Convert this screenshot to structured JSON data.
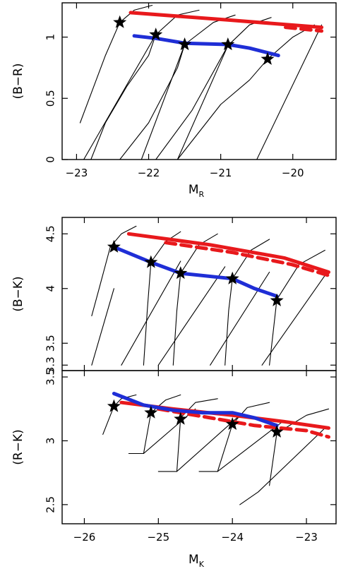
{
  "chart_data": [
    {
      "type": "line",
      "xlabel": "M",
      "xlabel_sub": "R",
      "ylabel": "(B−R)",
      "xlim": [
        -23.2,
        -19.4
      ],
      "ylim": [
        0,
        1.28
      ],
      "x_ticks": [
        -23,
        -22,
        -21,
        -20
      ],
      "x_tick_labels": [
        "−23",
        "−22",
        "−21",
        "−20"
      ],
      "y_ticks": [
        0,
        0.5,
        1
      ],
      "y_tick_labels": [
        "0",
        "0.5",
        "1"
      ],
      "series": [
        {
          "role": "model-thick",
          "color": "#e8191c",
          "dash": false,
          "x": [
            -22.25,
            -20.9,
            -19.6
          ],
          "y": [
            1.2,
            1.14,
            1.08
          ]
        },
        {
          "role": "model-thick",
          "color": "#e8191c",
          "dash": true,
          "x": [
            -20.1,
            -19.6
          ],
          "y": [
            1.08,
            1.05
          ]
        },
        {
          "role": "model-thick",
          "color": "#1f2ed6",
          "dash": false,
          "x": [
            -22.2,
            -21.9,
            -21.5,
            -20.9,
            -20.6,
            -20.2
          ],
          "y": [
            1.01,
            0.99,
            0.95,
            0.94,
            0.91,
            0.85
          ]
        },
        {
          "role": "track",
          "color": "#000000",
          "x": [
            -22.95,
            -22.6,
            -22.4,
            -22.2,
            -21.95
          ],
          "y": [
            0.3,
            0.85,
            1.12,
            1.22,
            1.26
          ]
        },
        {
          "role": "track",
          "color": "#000000",
          "x": [
            -22.8,
            -22.6,
            -22.3,
            -22.0,
            -21.9,
            -21.6,
            -21.3
          ],
          "y": [
            0.0,
            0.3,
            0.6,
            0.85,
            1.02,
            1.18,
            1.22
          ]
        },
        {
          "role": "track",
          "color": "#000000",
          "x": [
            -22.4,
            -22.0,
            -21.6,
            -21.5,
            -21.1,
            -20.8
          ],
          "y": [
            0.0,
            0.3,
            0.75,
            0.94,
            1.12,
            1.18
          ]
        },
        {
          "role": "track",
          "color": "#000000",
          "x": [
            -21.9,
            -21.4,
            -20.9,
            -20.6,
            -20.3
          ],
          "y": [
            0.0,
            0.4,
            0.93,
            1.1,
            1.16
          ]
        },
        {
          "role": "track",
          "color": "#000000",
          "x": [
            -21.6,
            -21.0,
            -20.6,
            -20.35,
            -20.0,
            -19.7
          ],
          "y": [
            0.0,
            0.45,
            0.65,
            0.82,
            1.0,
            1.1
          ]
        },
        {
          "role": "track",
          "color": "#000000",
          "x": [
            -22.9,
            -21.9
          ],
          "y": [
            0.0,
            1.02
          ]
        },
        {
          "role": "track",
          "color": "#000000",
          "x": [
            -22.1,
            -21.5
          ],
          "y": [
            0.0,
            0.94
          ]
        },
        {
          "role": "track",
          "color": "#000000",
          "x": [
            -21.6,
            -20.9
          ],
          "y": [
            0.0,
            0.93
          ]
        },
        {
          "role": "track",
          "color": "#000000",
          "x": [
            -20.5,
            -19.6
          ],
          "y": [
            0.0,
            1.1
          ]
        }
      ],
      "points": {
        "marker": "star",
        "x": [
          -22.4,
          -21.9,
          -21.5,
          -20.9,
          -20.35
        ],
        "y": [
          1.12,
          1.02,
          0.94,
          0.94,
          0.82
        ]
      }
    },
    {
      "type": "line",
      "xlabel": "",
      "ylabel": "(B−K)",
      "xlim": [
        -26.3,
        -22.6
      ],
      "ylim": [
        3.25,
        4.65
      ],
      "x_ticks": [
        -26,
        -25,
        -24,
        -23
      ],
      "y_ticks": [
        3.3,
        3.5,
        4,
        4.5
      ],
      "y_tick_labels": [
        "3.3",
        "3.5",
        "4",
        "4.5"
      ],
      "series": [
        {
          "role": "model-thick",
          "color": "#e8191c",
          "dash": false,
          "x": [
            -25.4,
            -24.3,
            -23.3,
            -22.7
          ],
          "y": [
            4.5,
            4.4,
            4.28,
            4.15
          ]
        },
        {
          "role": "model-thick",
          "color": "#e8191c",
          "dash": true,
          "x": [
            -24.9,
            -24.0,
            -23.2,
            -22.7
          ],
          "y": [
            4.42,
            4.33,
            4.22,
            4.12
          ]
        },
        {
          "role": "model-thick",
          "color": "#1f2ed6",
          "dash": false,
          "x": [
            -25.6,
            -25.1,
            -24.7,
            -24.0,
            -23.7,
            -23.4
          ],
          "y": [
            4.38,
            4.24,
            4.14,
            4.09,
            4.0,
            3.93
          ]
        },
        {
          "role": "track",
          "color": "#000000",
          "x": [
            -25.9,
            -25.8,
            -25.65,
            -25.5,
            -25.3
          ],
          "y": [
            3.75,
            4.0,
            4.38,
            4.5,
            4.57
          ]
        },
        {
          "role": "track",
          "color": "#000000",
          "x": [
            -25.2,
            -25.15,
            -25.1,
            -24.9,
            -24.7
          ],
          "y": [
            3.3,
            3.8,
            4.24,
            4.43,
            4.52
          ]
        },
        {
          "role": "track",
          "color": "#000000",
          "x": [
            -24.8,
            -24.75,
            -24.7,
            -24.45,
            -24.2
          ],
          "y": [
            3.3,
            3.8,
            4.14,
            4.4,
            4.5
          ]
        },
        {
          "role": "track",
          "color": "#000000",
          "x": [
            -24.1,
            -24.05,
            -24.0,
            -23.75,
            -23.5
          ],
          "y": [
            3.3,
            3.8,
            4.09,
            4.35,
            4.45
          ]
        },
        {
          "role": "track",
          "color": "#000000",
          "x": [
            -23.5,
            -23.45,
            -23.4,
            -23.1,
            -22.75
          ],
          "y": [
            3.3,
            3.6,
            3.9,
            4.22,
            4.35
          ]
        },
        {
          "role": "track",
          "color": "#000000",
          "x": [
            -25.9,
            -25.6
          ],
          "y": [
            3.3,
            4.0
          ]
        },
        {
          "role": "track",
          "color": "#000000",
          "x": [
            -25.5,
            -24.7
          ],
          "y": [
            3.3,
            4.25
          ]
        },
        {
          "role": "track",
          "color": "#000000",
          "x": [
            -25.0,
            -24.1
          ],
          "y": [
            3.3,
            4.2
          ]
        },
        {
          "role": "track",
          "color": "#000000",
          "x": [
            -24.3,
            -23.5
          ],
          "y": [
            3.3,
            4.15
          ]
        },
        {
          "role": "track",
          "color": "#000000",
          "x": [
            -23.6,
            -22.75
          ],
          "y": [
            3.3,
            4.12
          ]
        }
      ],
      "points": {
        "marker": "star",
        "x": [
          -25.6,
          -25.1,
          -24.7,
          -24.0,
          -23.4
        ],
        "y": [
          4.38,
          4.24,
          4.14,
          4.09,
          3.89
        ]
      }
    },
    {
      "type": "line",
      "xlabel": "M",
      "xlabel_sub": "K",
      "ylabel": "(R−K)",
      "xlim": [
        -26.3,
        -22.6
      ],
      "ylim": [
        2.35,
        3.55
      ],
      "x_ticks": [
        -26,
        -25,
        -24,
        -23
      ],
      "x_tick_labels": [
        "−26",
        "−25",
        "−24",
        "−23"
      ],
      "y_ticks": [
        2.5,
        3,
        3.5
      ],
      "y_tick_labels": [
        "2.5",
        "3",
        "3.5"
      ],
      "series": [
        {
          "role": "model-thick",
          "color": "#e8191c",
          "dash": false,
          "x": [
            -25.5,
            -24.8,
            -24.0,
            -23.3,
            -22.7
          ],
          "y": [
            3.3,
            3.25,
            3.2,
            3.15,
            3.1
          ]
        },
        {
          "role": "model-thick",
          "color": "#e8191c",
          "dash": true,
          "x": [
            -25.0,
            -24.3,
            -23.7,
            -23.0,
            -22.7
          ],
          "y": [
            3.25,
            3.18,
            3.12,
            3.08,
            3.03
          ]
        },
        {
          "role": "model-thick",
          "color": "#1f2ed6",
          "dash": false,
          "x": [
            -25.6,
            -25.2,
            -24.8,
            -24.4,
            -24.0,
            -23.7,
            -23.4
          ],
          "y": [
            3.37,
            3.28,
            3.24,
            3.22,
            3.22,
            3.18,
            3.12
          ]
        },
        {
          "role": "track",
          "color": "#000000",
          "x": [
            -25.75,
            -25.6,
            -25.5,
            -25.3
          ],
          "y": [
            3.05,
            3.27,
            3.33,
            3.36
          ]
        },
        {
          "role": "track",
          "color": "#000000",
          "x": [
            -25.2,
            -25.1,
            -24.9,
            -24.7
          ],
          "y": [
            2.9,
            3.22,
            3.32,
            3.36
          ]
        },
        {
          "role": "track",
          "color": "#000000",
          "x": [
            -24.75,
            -24.7,
            -24.5,
            -24.2
          ],
          "y": [
            2.76,
            3.18,
            3.3,
            3.33
          ]
        },
        {
          "role": "track",
          "color": "#000000",
          "x": [
            -24.2,
            -24.0,
            -23.8,
            -23.5
          ],
          "y": [
            2.76,
            3.13,
            3.26,
            3.3
          ]
        },
        {
          "role": "track",
          "color": "#000000",
          "x": [
            -23.5,
            -23.4,
            -23.0,
            -22.7
          ],
          "y": [
            2.65,
            3.06,
            3.2,
            3.25
          ]
        },
        {
          "role": "track",
          "color": "#000000",
          "x": [
            -25.4,
            -25.2,
            -24.5
          ],
          "y": [
            2.9,
            2.9,
            3.25
          ]
        },
        {
          "role": "track",
          "color": "#000000",
          "x": [
            -25.0,
            -24.75,
            -23.9
          ],
          "y": [
            2.76,
            2.76,
            3.2
          ]
        },
        {
          "role": "track",
          "color": "#000000",
          "x": [
            -24.45,
            -24.2,
            -23.3
          ],
          "y": [
            2.76,
            2.76,
            3.16
          ]
        },
        {
          "role": "track",
          "color": "#000000",
          "x": [
            -23.9,
            -23.65,
            -22.75
          ],
          "y": [
            2.5,
            2.6,
            3.1
          ]
        }
      ],
      "points": {
        "marker": "star",
        "x": [
          -25.6,
          -25.1,
          -24.7,
          -24.0,
          -23.4
        ],
        "y": [
          3.27,
          3.22,
          3.17,
          3.13,
          3.07
        ]
      }
    }
  ]
}
